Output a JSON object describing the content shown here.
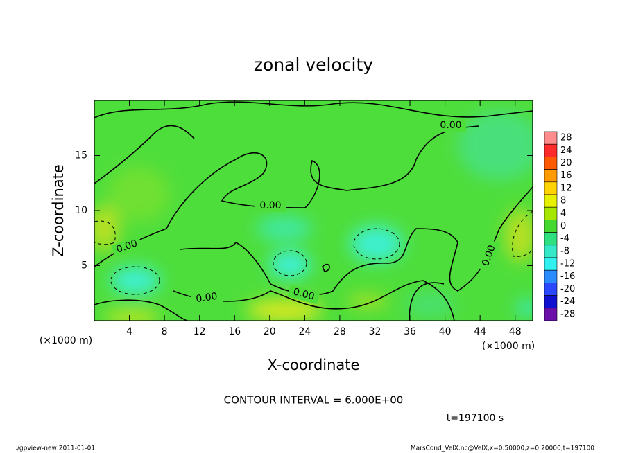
{
  "chart_data": {
    "type": "contour",
    "title": "zonal velocity",
    "x_label": "X-coordinate",
    "y_label": "Z-coordinate",
    "x_unit": "(×1000 m)",
    "y_unit": "(×1000 m)",
    "xlim": [
      0,
      50
    ],
    "ylim": [
      0,
      20
    ],
    "xticks": [
      4,
      8,
      12,
      16,
      20,
      24,
      28,
      32,
      36,
      40,
      44,
      48
    ],
    "yticks": [
      5,
      10,
      15
    ],
    "contour_labels": [
      "0.00",
      "0.00",
      "0.00",
      "0.00",
      "0.00",
      "0.00"
    ],
    "contour_interval": "CONTOUR INTERVAL = 6.000E+00",
    "time_label": "t=197100 s",
    "colorbar": {
      "levels": [
        28,
        24,
        20,
        16,
        12,
        8,
        4,
        0,
        -4,
        -8,
        -12,
        -16,
        -20,
        -24,
        -28
      ],
      "colors": [
        "#ff8c8c",
        "#ff2a2a",
        "#ff5a00",
        "#ff9a00",
        "#ffd200",
        "#e6f000",
        "#a6e600",
        "#44d830",
        "#2ee080",
        "#34e8c8",
        "#30f0f0",
        "#2a8cff",
        "#2a48ff",
        "#1010d0",
        "#6a10a8"
      ]
    }
  },
  "footer": {
    "left": "./gpview-new  2011-01-01",
    "right": "MarsCond_VelX.nc@VelX,x=0:50000,z=0:20000,t=197100"
  }
}
